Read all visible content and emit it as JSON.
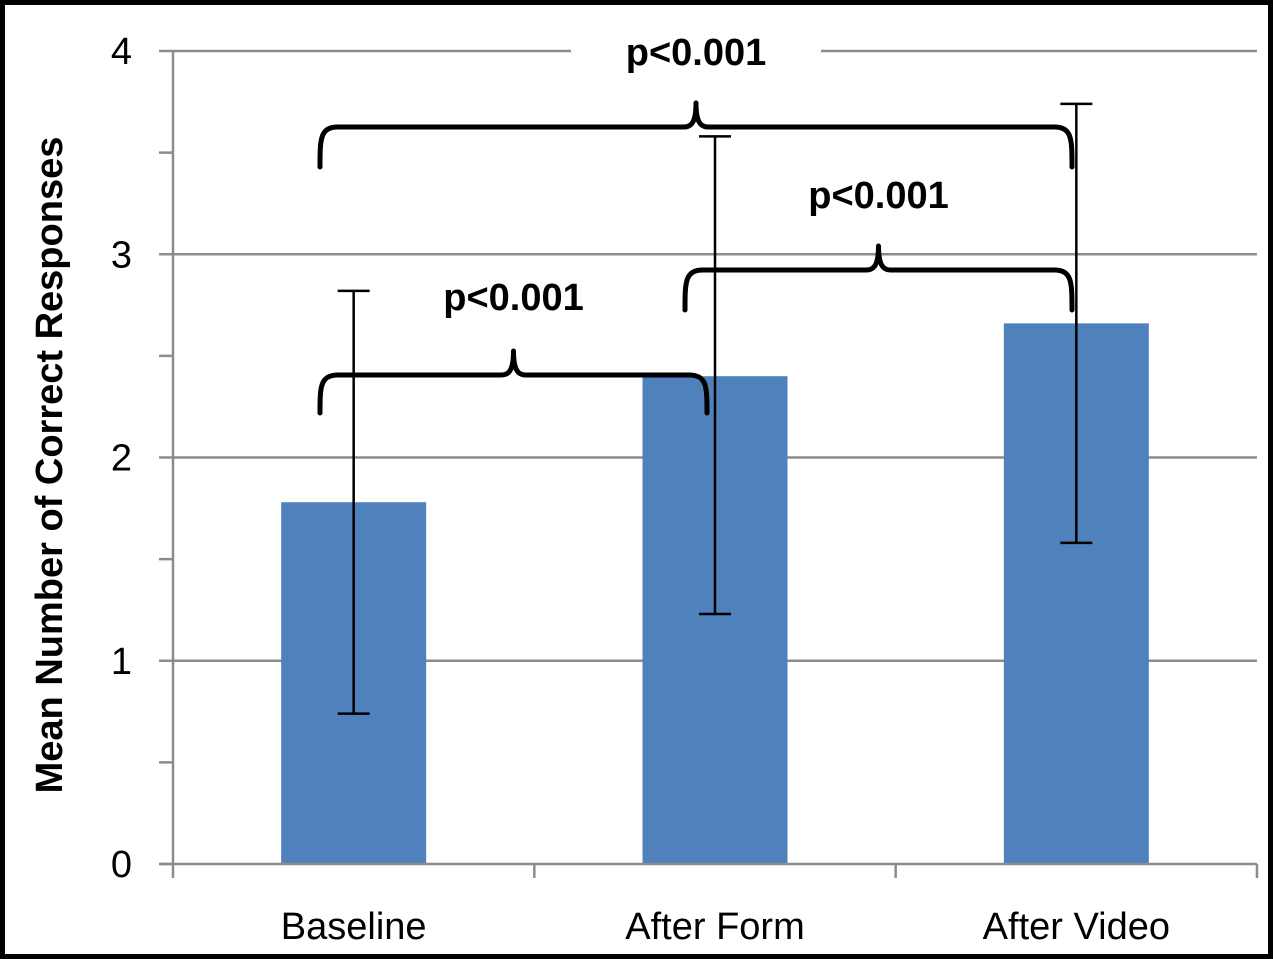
{
  "chart_data": {
    "type": "bar",
    "title": "",
    "xlabel": "",
    "ylabel": "Mean Number of Correct Responses",
    "ylim": [
      0,
      4
    ],
    "yticks": [
      "0",
      "1",
      "2",
      "3",
      "4"
    ],
    "grid": true,
    "categories": [
      "Baseline",
      "After Form",
      "After Video"
    ],
    "values": [
      1.78,
      2.4,
      2.66
    ],
    "error_low": [
      0.74,
      1.23,
      1.58
    ],
    "error_high": [
      2.82,
      3.58,
      3.74
    ],
    "bar_color": "#4F81BD",
    "annotations": [
      {
        "text": "p<0.001",
        "from": "Baseline",
        "to": "After Form"
      },
      {
        "text": "p<0.001",
        "from": "After Form",
        "to": "After Video"
      },
      {
        "text": "p<0.001",
        "from": "Baseline",
        "to": "After Video"
      }
    ]
  }
}
